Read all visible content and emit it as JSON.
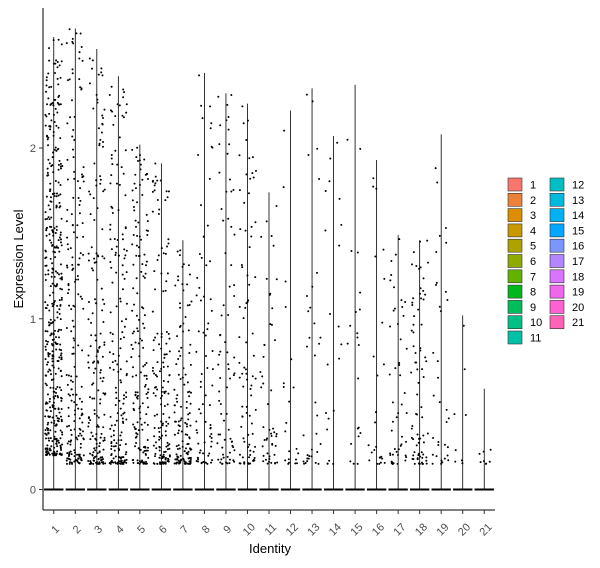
{
  "chart_data": {
    "type": "violin",
    "xlabel": "Identity",
    "ylabel": "Expression Level",
    "categories": [
      "1",
      "2",
      "3",
      "4",
      "5",
      "6",
      "7",
      "8",
      "9",
      "10",
      "11",
      "12",
      "13",
      "14",
      "15",
      "16",
      "17",
      "18",
      "19",
      "20",
      "21"
    ],
    "ylim": [
      -0.12,
      2.82
    ],
    "yticks": [
      0,
      1,
      2
    ],
    "max_values": [
      2.65,
      2.7,
      2.58,
      2.42,
      2.02,
      1.91,
      1.46,
      2.44,
      2.32,
      2.26,
      1.74,
      2.22,
      2.35,
      2.07,
      2.37,
      1.93,
      1.49,
      1.46,
      2.08,
      1.02,
      0.59
    ],
    "point_density": [
      1.0,
      0.45,
      0.42,
      0.42,
      0.38,
      0.36,
      0.32,
      0.18,
      0.18,
      0.2,
      0.12,
      0.05,
      0.08,
      0.05,
      0.05,
      0.06,
      0.12,
      0.18,
      0.08,
      0.02,
      0.02
    ],
    "legend": {
      "placement": "right",
      "items": [
        {
          "label": "1",
          "color": "#F8766D"
        },
        {
          "label": "2",
          "color": "#EC8239"
        },
        {
          "label": "3",
          "color": "#DB8E00"
        },
        {
          "label": "4",
          "color": "#C79800"
        },
        {
          "label": "5",
          "color": "#AEA200"
        },
        {
          "label": "6",
          "color": "#8FAA00"
        },
        {
          "label": "7",
          "color": "#64B200"
        },
        {
          "label": "8",
          "color": "#00B81B"
        },
        {
          "label": "9",
          "color": "#00BD5C"
        },
        {
          "label": "10",
          "color": "#00C085"
        },
        {
          "label": "11",
          "color": "#00C1A7"
        },
        {
          "label": "12",
          "color": "#00BFC4"
        },
        {
          "label": "13",
          "color": "#00BADE"
        },
        {
          "label": "14",
          "color": "#00B2F3"
        },
        {
          "label": "15",
          "color": "#00A6FF"
        },
        {
          "label": "16",
          "color": "#7C96FF"
        },
        {
          "label": "17",
          "color": "#B385FF"
        },
        {
          "label": "18",
          "color": "#D874FD"
        },
        {
          "label": "19",
          "color": "#EF67EB"
        },
        {
          "label": "20",
          "color": "#FD61D3"
        },
        {
          "label": "21",
          "color": "#FF63B6"
        }
      ]
    }
  }
}
